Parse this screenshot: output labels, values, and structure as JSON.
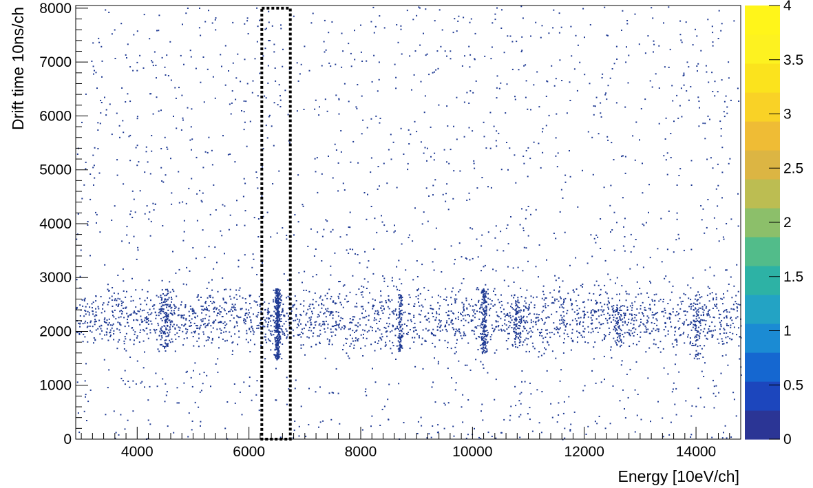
{
  "chart_data": {
    "type": "heatmap",
    "title": "",
    "xlabel": "Energy [10eV/ch]",
    "ylabel": "Drift time 10ns/ch",
    "xlim": [
      2900,
      14800
    ],
    "ylim": [
      0,
      8050
    ],
    "x_ticks": [
      "4000",
      "6000",
      "8000",
      "10000",
      "12000",
      "14000"
    ],
    "x_tick_values": [
      4000,
      6000,
      8000,
      10000,
      12000,
      14000
    ],
    "y_ticks": [
      "0",
      "1000",
      "2000",
      "3000",
      "4000",
      "5000",
      "6000",
      "7000",
      "8000"
    ],
    "y_tick_values": [
      0,
      1000,
      2000,
      3000,
      4000,
      5000,
      6000,
      7000,
      8000
    ],
    "colorbar": {
      "min": 0,
      "max": 4,
      "ticks": [
        "0",
        "0.5",
        "1",
        "1.5",
        "2",
        "2.5",
        "3",
        "3.5",
        "4"
      ],
      "tick_values": [
        0,
        0.5,
        1,
        1.5,
        2,
        2.5,
        3,
        3.5,
        4
      ],
      "colors": [
        "#2b3595",
        "#1c46bd",
        "#1567d0",
        "#1b8bd3",
        "#23a3c4",
        "#2db2a5",
        "#52bc8a",
        "#8cbf6a",
        "#bcbd52",
        "#dcb543",
        "#efbc35",
        "#f9d226",
        "#fbe31d",
        "#fdf220",
        "#fff51a"
      ]
    },
    "point_color": "#1f3a93",
    "selection_box": {
      "x_range": [
        6230,
        6740
      ],
      "y_range": [
        0,
        8000
      ],
      "style": "dotted"
    },
    "clusters": [
      {
        "x_center": 6500,
        "x_width": 70,
        "y_min": 1500,
        "y_max": 2800,
        "count": 320
      },
      {
        "x_center": 4500,
        "x_width": 150,
        "y_min": 1700,
        "y_max": 2800,
        "count": 110
      },
      {
        "x_center": 8700,
        "x_width": 60,
        "y_min": 1600,
        "y_max": 2700,
        "count": 85
      },
      {
        "x_center": 10200,
        "x_width": 90,
        "y_min": 1600,
        "y_max": 2800,
        "count": 170
      },
      {
        "x_center": 10800,
        "x_width": 150,
        "y_min": 1700,
        "y_max": 2600,
        "count": 70
      },
      {
        "x_center": 12600,
        "x_width": 120,
        "y_min": 1700,
        "y_max": 2500,
        "count": 50
      },
      {
        "x_center": 14000,
        "x_width": 120,
        "y_min": 1500,
        "y_max": 2700,
        "count": 60
      }
    ],
    "band": {
      "x_range": [
        2900,
        14800
      ],
      "y_min": 1500,
      "y_max": 3000,
      "count": 2100
    },
    "background": {
      "x_range": [
        2900,
        14800
      ],
      "y_range": [
        0,
        8050
      ],
      "count": 1700
    }
  }
}
